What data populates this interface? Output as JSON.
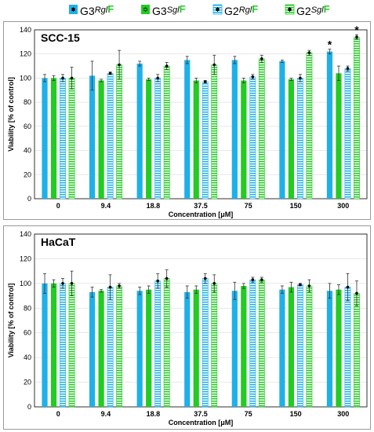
{
  "legend": [
    {
      "prefix": "G3",
      "mid": "Rgl",
      "suffix": "F",
      "series": 0
    },
    {
      "prefix": "G3",
      "mid": "Sgl",
      "suffix": "F",
      "series": 1
    },
    {
      "prefix": "G2",
      "mid": "Rgl",
      "suffix": "F",
      "series": 2
    },
    {
      "prefix": "G2",
      "mid": "Sgl",
      "suffix": "F",
      "series": 3
    }
  ],
  "colors": {
    "blue": "#1fb0e8",
    "green": "#22cc22",
    "suffix_green": "#22cc22"
  },
  "chart_data": [
    {
      "type": "bar",
      "title": "SCC-15",
      "xlabel": "Concentration [μM]",
      "ylabel": "Viability [% of control]",
      "ylim": [
        0,
        140
      ],
      "yticks": [
        0,
        20,
        40,
        60,
        80,
        100,
        120,
        140
      ],
      "categories": [
        "0",
        "9.4",
        "18.8",
        "37.5",
        "75",
        "150",
        "300"
      ],
      "series": [
        {
          "name": "G3RglF",
          "style": "solid-blue",
          "values": [
            100,
            102,
            112,
            115,
            115,
            114,
            122
          ],
          "errors": [
            3,
            12,
            2,
            3,
            3,
            1,
            2
          ],
          "marks": [
            "",
            "",
            "",
            "",
            "",
            "",
            "*"
          ]
        },
        {
          "name": "G3SglF",
          "style": "solid-green",
          "values": [
            100,
            98,
            99,
            98,
            98,
            99,
            104
          ],
          "errors": [
            2,
            1,
            1,
            2,
            2,
            1,
            6
          ],
          "marks": [
            "",
            "",
            "",
            "",
            "",
            "",
            ""
          ]
        },
        {
          "name": "G2RglF",
          "style": "hatch-blue",
          "values": [
            100,
            104,
            100,
            97,
            101,
            100,
            108
          ],
          "errors": [
            3,
            1,
            3,
            1,
            2,
            3,
            2
          ],
          "marks": [
            "",
            "",
            "",
            "",
            "",
            "",
            ""
          ]
        },
        {
          "name": "G2SglF",
          "style": "hatch-green",
          "values": [
            100,
            111,
            110,
            111,
            116,
            121,
            134
          ],
          "errors": [
            9,
            12,
            3,
            8,
            3,
            2,
            2
          ],
          "marks": [
            "",
            "",
            "",
            "",
            "",
            "",
            "*"
          ]
        }
      ]
    },
    {
      "type": "bar",
      "title": "HaCaT",
      "xlabel": "Concentration [μM]",
      "ylabel": "Viability [% of control]",
      "ylim": [
        0,
        140
      ],
      "yticks": [
        0,
        20,
        40,
        60,
        80,
        100,
        120,
        140
      ],
      "categories": [
        "0",
        "9.4",
        "18.8",
        "37.5",
        "75",
        "150",
        "300"
      ],
      "series": [
        {
          "name": "G3RglF",
          "style": "solid-blue",
          "values": [
            100,
            93,
            94,
            93,
            94,
            95,
            94
          ],
          "errors": [
            8,
            4,
            3,
            5,
            7,
            3,
            6
          ]
        },
        {
          "name": "G3SglF",
          "style": "solid-green",
          "values": [
            100,
            94,
            95,
            95,
            98,
            97,
            95
          ],
          "errors": [
            3,
            1,
            3,
            3,
            2,
            4,
            4
          ]
        },
        {
          "name": "G2RglF",
          "style": "hatch-blue",
          "values": [
            100,
            97,
            102,
            104,
            103,
            99,
            97
          ],
          "errors": [
            4,
            10,
            6,
            4,
            2,
            1,
            11
          ]
        },
        {
          "name": "G2SglF",
          "style": "hatch-green",
          "values": [
            100,
            98,
            104,
            100,
            103,
            98,
            92
          ],
          "errors": [
            10,
            2,
            7,
            7,
            2,
            5,
            10
          ]
        }
      ]
    }
  ]
}
